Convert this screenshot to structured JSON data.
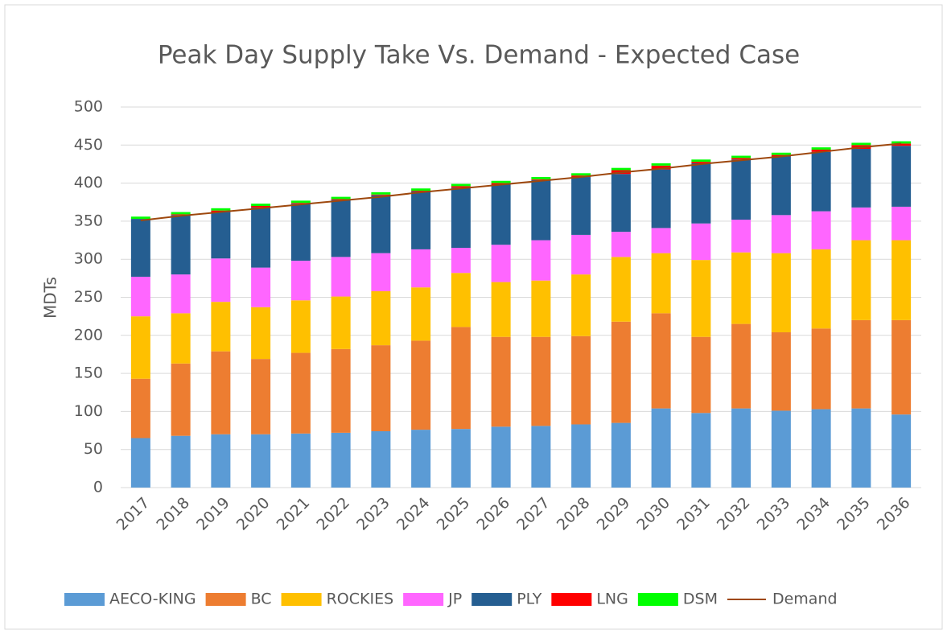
{
  "chart_data": {
    "type": "stacked_bar",
    "title": "Peak Day Supply Take Vs. Demand - Expected Case",
    "y_label": "MDTs",
    "categories": [
      "2017",
      "2018",
      "2019",
      "2020",
      "2021",
      "2022",
      "2023",
      "2024",
      "2025",
      "2026",
      "2027",
      "2028",
      "2029",
      "2030",
      "2031",
      "2032",
      "2033",
      "2034",
      "2035",
      "2036"
    ],
    "series": [
      {
        "name": "AECO-KING",
        "color": "#5b9bd5",
        "values": [
          65,
          68,
          70,
          70,
          71,
          72,
          74,
          76,
          77,
          80,
          81,
          83,
          85,
          104,
          98,
          104,
          101,
          103,
          104,
          96
        ]
      },
      {
        "name": "BC",
        "color": "#ed7d31",
        "values": [
          78,
          95,
          109,
          99,
          106,
          110,
          113,
          117,
          134,
          118,
          117,
          116,
          133,
          125,
          100,
          111,
          103,
          106,
          116,
          124
        ]
      },
      {
        "name": "ROCKIES",
        "color": "#ffc000",
        "values": [
          82,
          66,
          65,
          68,
          69,
          69,
          71,
          70,
          71,
          72,
          74,
          81,
          85,
          79,
          101,
          94,
          104,
          104,
          105,
          105
        ]
      },
      {
        "name": "JP",
        "color": "#ff66ff",
        "values": [
          52,
          51,
          57,
          52,
          52,
          52,
          50,
          50,
          33,
          49,
          53,
          52,
          33,
          33,
          48,
          43,
          50,
          50,
          43,
          44
        ]
      },
      {
        "name": "PLY",
        "color": "#255e91",
        "values": [
          76,
          78,
          61,
          79,
          75,
          75,
          76,
          76,
          79,
          79,
          79,
          76,
          76,
          77,
          79,
          79,
          77,
          78,
          77,
          80
        ]
      },
      {
        "name": "LNG",
        "color": "#ff0000",
        "values": [
          0,
          1,
          2,
          2,
          1,
          1,
          1,
          1,
          2,
          2,
          1,
          2,
          5,
          5,
          2,
          2,
          2,
          3,
          5,
          3
        ]
      },
      {
        "name": "DSM",
        "color": "#00ff00",
        "values": [
          3,
          3,
          3,
          3,
          3,
          3,
          3,
          3,
          3,
          3,
          3,
          3,
          3,
          3,
          3,
          3,
          3,
          3,
          3,
          3
        ]
      },
      {
        "name": "Demand",
        "color": "#9e480e",
        "type": "line",
        "values": [
          351,
          357,
          362,
          367,
          372,
          377,
          382,
          388,
          393,
          398,
          403,
          408,
          414,
          419,
          425,
          430,
          435,
          441,
          447,
          452
        ]
      }
    ],
    "ylim": [
      0,
      500
    ],
    "yticks": [
      0,
      50,
      100,
      150,
      200,
      250,
      300,
      350,
      400,
      450,
      500
    ],
    "grid": true
  }
}
